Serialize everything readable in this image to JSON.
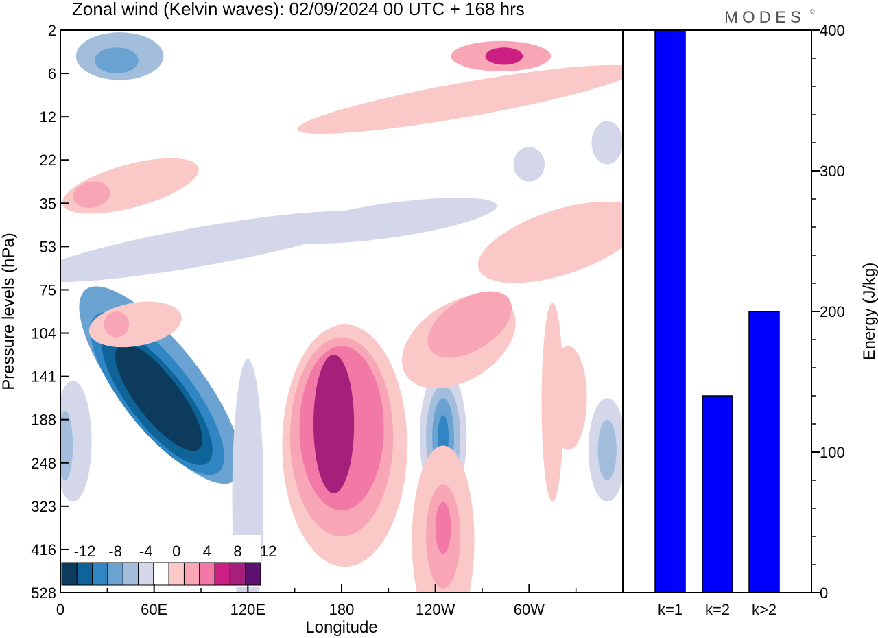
{
  "title": "Zonal wind (Kelvin waves):  02/09/2024  00 UTC  + 168 hrs",
  "brand": "MODES",
  "brand_mark": "©",
  "chart_data": [
    {
      "type": "heatmap",
      "xlabel": "Longitude",
      "ylabel": "Pressure levels (hPa)",
      "x_ticks": [
        "0",
        "60E",
        "120E",
        "180",
        "120W",
        "60W"
      ],
      "x_tick_values": [
        0,
        60,
        120,
        180,
        240,
        300
      ],
      "xlim": [
        0,
        360
      ],
      "y_ticks": [
        "2",
        "6",
        "12",
        "22",
        "35",
        "53",
        "75",
        "104",
        "141",
        "188",
        "248",
        "323",
        "416",
        "528"
      ],
      "colorbar": {
        "labels": [
          "-12",
          "-8",
          "-4",
          "0",
          "4",
          "8",
          "12"
        ],
        "colors": [
          "#0d3b5e",
          "#0e6499",
          "#2f86c2",
          "#6aa3d1",
          "#a3bedd",
          "#d4d7ea",
          "#ffffff",
          "#fac8c6",
          "#f8a6b6",
          "#f279a6",
          "#cb1f84",
          "#a61f7b",
          "#5c1170"
        ]
      },
      "blobs": [
        {
          "lon": 64,
          "lev": 8.2,
          "rx": 26,
          "ry": 2.8,
          "val": -5,
          "rot": -38
        },
        {
          "lon": 62,
          "lev": 8.4,
          "rx": 22,
          "ry": 2.3,
          "val": -7,
          "rot": -38
        },
        {
          "lon": 62,
          "lev": 8.5,
          "rx": 18,
          "ry": 1.9,
          "val": -9,
          "rot": -38
        },
        {
          "lon": 63,
          "lev": 8.5,
          "rx": 14,
          "ry": 1.5,
          "val": -11,
          "rot": -38
        },
        {
          "lon": 60,
          "lev": 8.2,
          "rx": 11,
          "ry": 1.1,
          "val": -14,
          "rot": -38
        },
        {
          "lon": 38,
          "lev": 0.6,
          "rx": 28,
          "ry": 0.55,
          "val": -3,
          "rot": 0
        },
        {
          "lon": 36,
          "lev": 0.7,
          "rx": 14,
          "ry": 0.3,
          "val": -5,
          "rot": 0
        },
        {
          "lon": 90,
          "lev": 5.0,
          "rx": 110,
          "ry": 0.45,
          "val": -2,
          "rot": -10
        },
        {
          "lon": 210,
          "lev": 4.4,
          "rx": 70,
          "ry": 0.4,
          "val": -2,
          "rot": -8
        },
        {
          "lon": 120,
          "lev": 10.8,
          "rx": 10,
          "ry": 3.2,
          "val": -2,
          "rot": 0
        },
        {
          "lon": 8,
          "lev": 9.5,
          "rx": 12,
          "ry": 1.4,
          "val": -2,
          "rot": 0
        },
        {
          "lon": 3,
          "lev": 9.6,
          "rx": 5,
          "ry": 0.8,
          "val": -4,
          "rot": 0
        },
        {
          "lon": 350,
          "lev": 9.7,
          "rx": 12,
          "ry": 1.2,
          "val": -2,
          "rot": 0
        },
        {
          "lon": 350,
          "lev": 9.7,
          "rx": 6,
          "ry": 0.7,
          "val": -4,
          "rot": 0
        },
        {
          "lon": 245,
          "lev": 9.4,
          "rx": 15,
          "ry": 1.6,
          "val": -2,
          "rot": 0
        },
        {
          "lon": 245,
          "lev": 9.4,
          "rx": 11,
          "ry": 1.2,
          "val": -3,
          "rot": 0
        },
        {
          "lon": 245,
          "lev": 9.4,
          "rx": 7,
          "ry": 0.9,
          "val": -5,
          "rot": 0
        },
        {
          "lon": 245,
          "lev": 9.4,
          "rx": 3.5,
          "ry": 0.5,
          "val": -8,
          "rot": 0
        },
        {
          "lon": 350,
          "lev": 2.6,
          "rx": 10,
          "ry": 0.5,
          "val": -2,
          "rot": 0
        },
        {
          "lon": 300,
          "lev": 3.1,
          "rx": 10,
          "ry": 0.4,
          "val": -2,
          "rot": 0
        },
        {
          "lon": 182,
          "lev": 9.6,
          "rx": 40,
          "ry": 2.8,
          "val": 2,
          "rot": 0
        },
        {
          "lon": 180,
          "lev": 9.4,
          "rx": 33,
          "ry": 2.3,
          "val": 5,
          "rot": 0
        },
        {
          "lon": 180,
          "lev": 9.2,
          "rx": 27,
          "ry": 1.9,
          "val": 7,
          "rot": 0
        },
        {
          "lon": 175,
          "lev": 9.1,
          "rx": 13,
          "ry": 1.6,
          "val": 10,
          "rot": 0
        },
        {
          "lon": 245,
          "lev": 11.8,
          "rx": 20,
          "ry": 2.2,
          "val": 2,
          "rot": 0
        },
        {
          "lon": 245,
          "lev": 11.7,
          "rx": 11,
          "ry": 1.2,
          "val": 5,
          "rot": 0
        },
        {
          "lon": 245,
          "lev": 11.5,
          "rx": 5,
          "ry": 0.6,
          "val": 7,
          "rot": 0
        },
        {
          "lon": 255,
          "lev": 7.2,
          "rx": 40,
          "ry": 0.9,
          "val": 2,
          "rot": -32
        },
        {
          "lon": 262,
          "lev": 6.8,
          "rx": 30,
          "ry": 0.6,
          "val": 5,
          "rot": -32
        },
        {
          "lon": 320,
          "lev": 4.9,
          "rx": 55,
          "ry": 0.75,
          "val": 2,
          "rot": -18
        },
        {
          "lon": 260,
          "lev": 1.6,
          "rx": 110,
          "ry": 0.4,
          "val": 2,
          "rot": -10
        },
        {
          "lon": 282,
          "lev": 0.6,
          "rx": 32,
          "ry": 0.35,
          "val": 5,
          "rot": 0
        },
        {
          "lon": 284,
          "lev": 0.6,
          "rx": 12,
          "ry": 0.2,
          "val": 8,
          "rot": 0
        },
        {
          "lon": 45,
          "lev": 3.6,
          "rx": 45,
          "ry": 0.5,
          "val": 2,
          "rot": -15
        },
        {
          "lon": 20,
          "lev": 3.8,
          "rx": 12,
          "ry": 0.3,
          "val": 5,
          "rot": -10
        },
        {
          "lon": 48,
          "lev": 6.8,
          "rx": 30,
          "ry": 0.5,
          "val": 2,
          "rot": -10
        },
        {
          "lon": 36,
          "lev": 6.8,
          "rx": 8,
          "ry": 0.3,
          "val": 5,
          "rot": 0
        },
        {
          "lon": 315,
          "lev": 8.6,
          "rx": 7,
          "ry": 2.3,
          "val": 2,
          "rot": 0
        },
        {
          "lon": 325,
          "lev": 8.5,
          "rx": 12,
          "ry": 1.2,
          "val": 2,
          "rot": 0
        }
      ]
    },
    {
      "type": "bar",
      "categories": [
        "k=1",
        "k=2",
        "k>2"
      ],
      "values": [
        400,
        140,
        200
      ],
      "ylabel": "Energy (J/kg)",
      "ylim": [
        0,
        400
      ],
      "y_ticks": [
        0,
        100,
        200,
        300,
        400
      ],
      "bar_color": "#0000ff"
    }
  ]
}
